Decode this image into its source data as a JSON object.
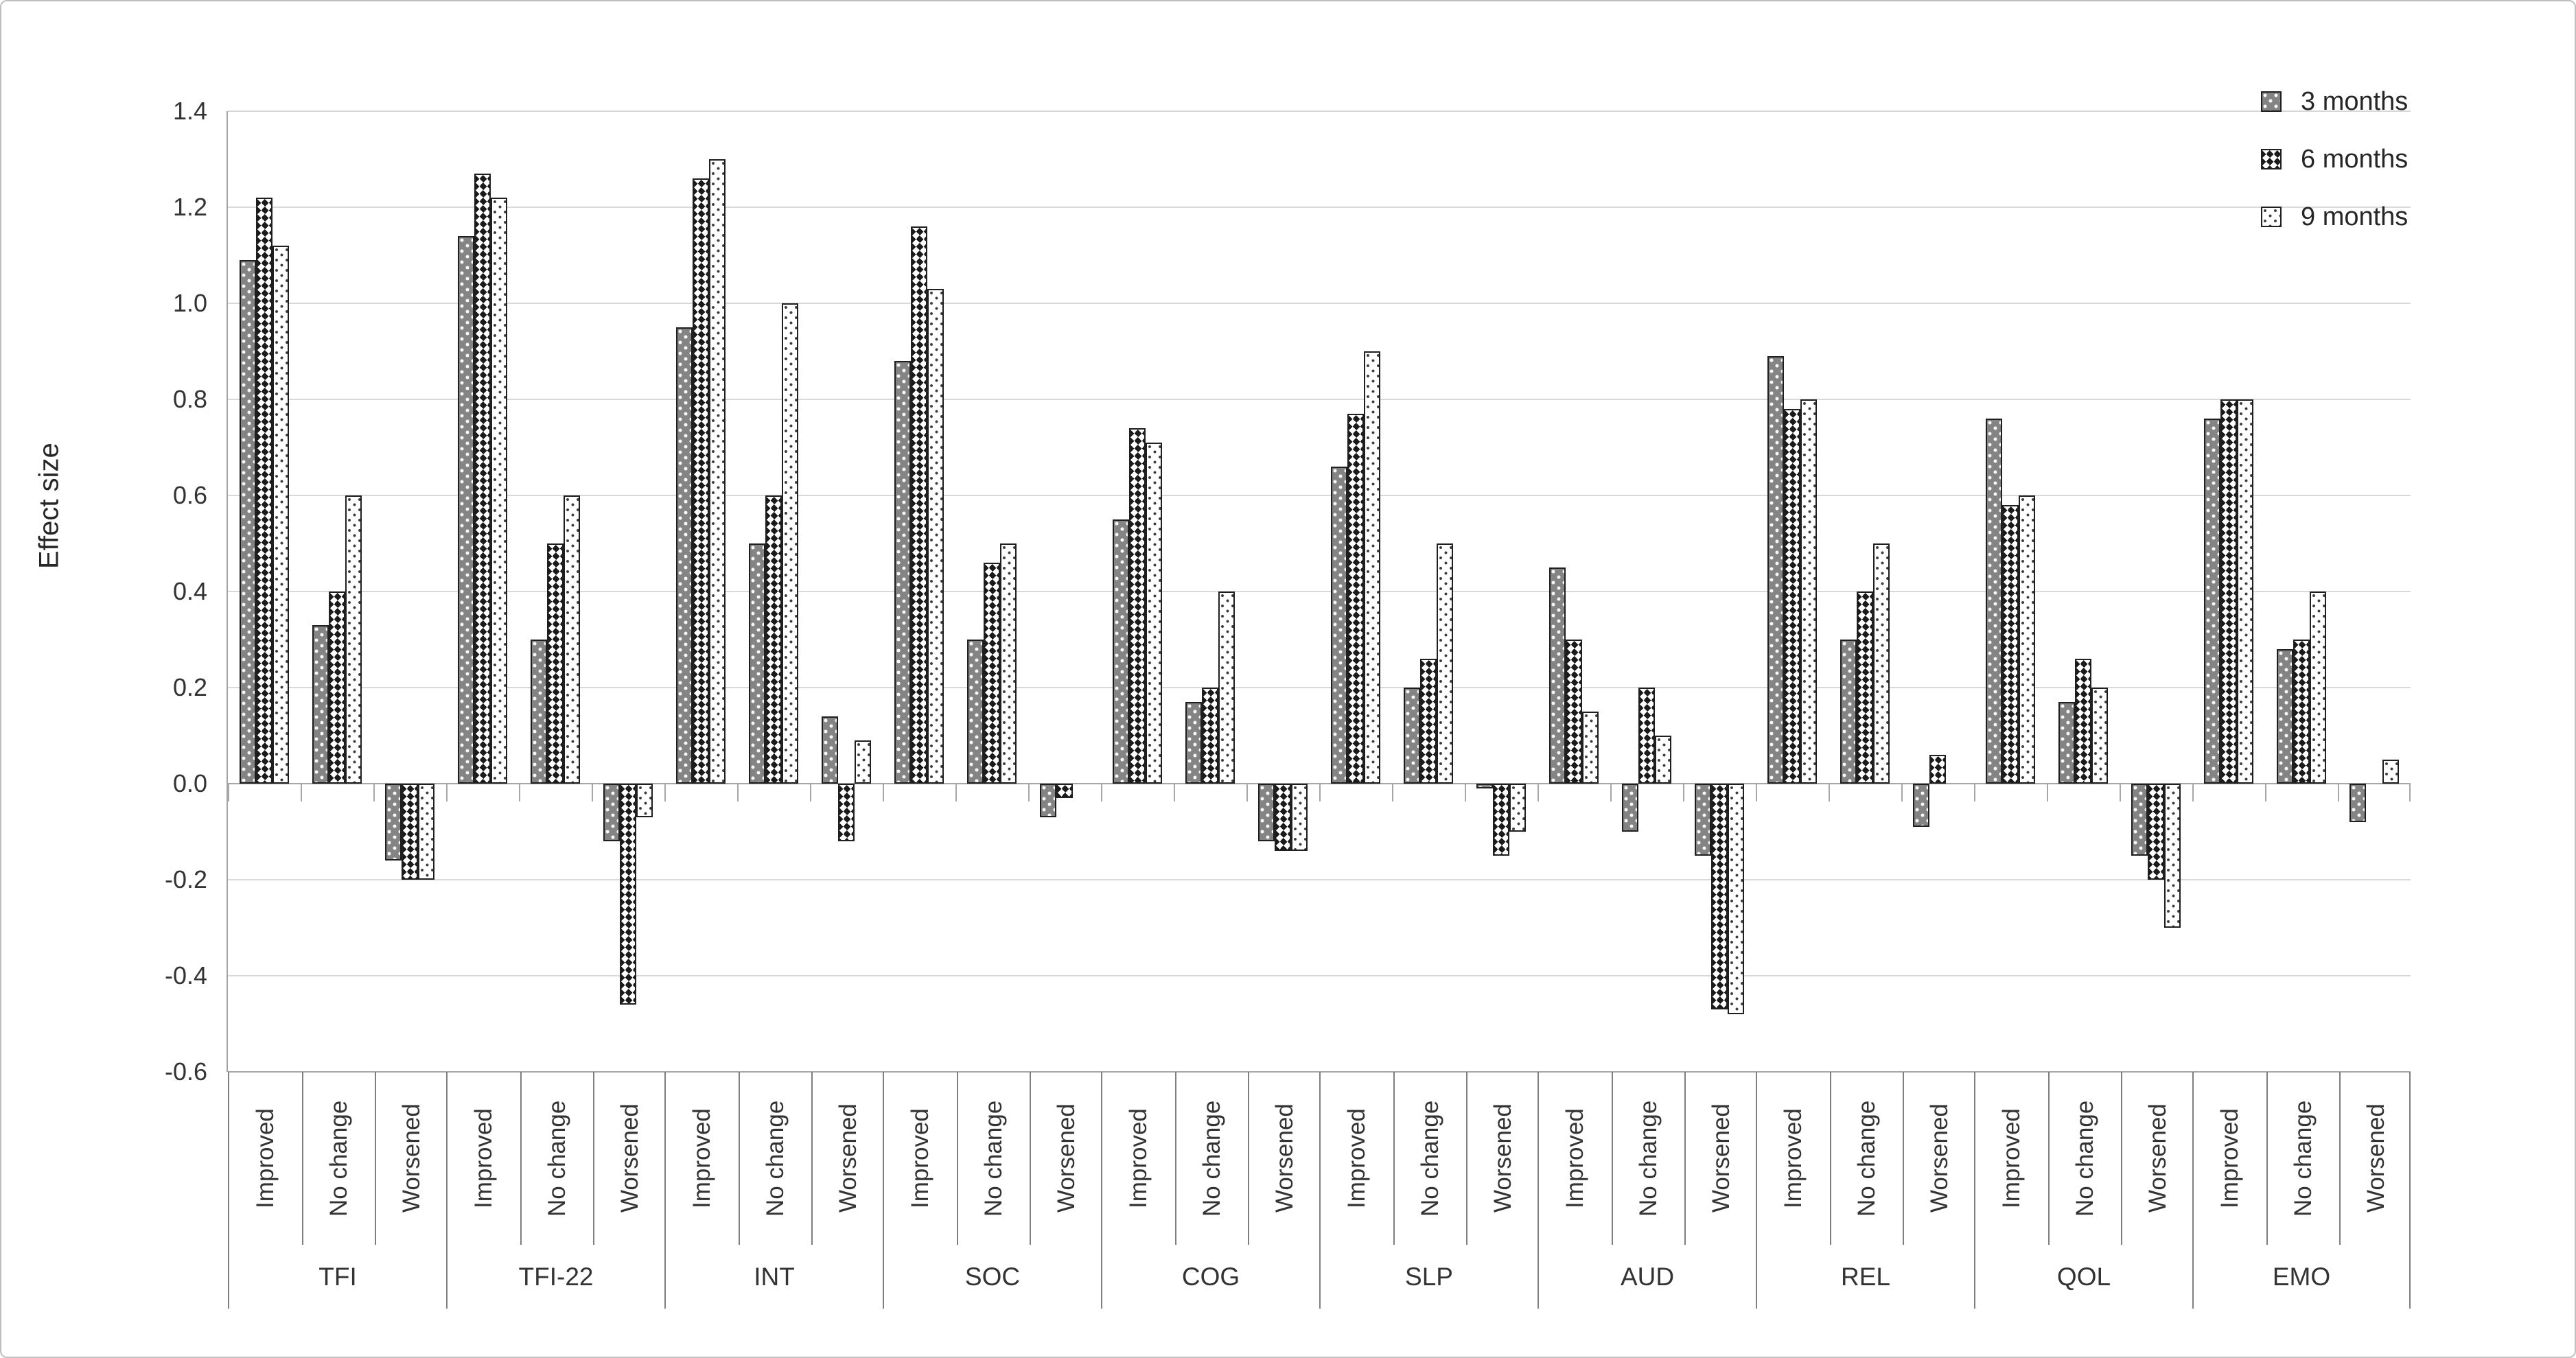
{
  "chart_data": {
    "type": "bar",
    "title": "",
    "ylabel": "Effect size",
    "ylim": [
      -0.6,
      1.4
    ],
    "y_tick_step": 0.2,
    "y_ticks": [
      "1.4",
      "1.2",
      "1.0",
      "0.8",
      "0.6",
      "0.4",
      "0.2",
      "0.0",
      "-0.2",
      "-0.4",
      "-0.6"
    ],
    "grid": "horizontal-light-gray",
    "legend_position": "top-right",
    "series_names": [
      "3 months",
      "6 months",
      "9 months"
    ],
    "series_patterns": [
      "dark-gray-with-white-dots",
      "black-white-checkerboard",
      "white-with-black-dots"
    ],
    "subcategories": [
      "Improved",
      "No change",
      "Worsened"
    ],
    "groups": [
      {
        "label": "TFI",
        "values": [
          [
            1.09,
            1.22,
            1.12
          ],
          [
            0.33,
            0.4,
            0.6
          ],
          [
            -0.16,
            -0.2,
            -0.2
          ]
        ]
      },
      {
        "label": "TFI-22",
        "values": [
          [
            1.14,
            1.27,
            1.22
          ],
          [
            0.3,
            0.5,
            0.6
          ],
          [
            -0.12,
            -0.46,
            -0.07
          ]
        ]
      },
      {
        "label": "INT",
        "values": [
          [
            0.95,
            1.26,
            1.3
          ],
          [
            0.5,
            0.6,
            1.0
          ],
          [
            0.14,
            -0.12,
            0.09
          ]
        ]
      },
      {
        "label": "SOC",
        "values": [
          [
            0.88,
            1.16,
            1.03
          ],
          [
            0.3,
            0.46,
            0.5
          ],
          [
            -0.07,
            -0.03,
            0
          ]
        ]
      },
      {
        "label": "COG",
        "values": [
          [
            0.55,
            0.74,
            0.71
          ],
          [
            0.17,
            0.2,
            0.4
          ],
          [
            -0.12,
            -0.14,
            -0.14
          ]
        ]
      },
      {
        "label": "SLP",
        "values": [
          [
            0.66,
            0.77,
            0.9
          ],
          [
            0.2,
            0.26,
            0.5
          ],
          [
            -0.01,
            -0.15,
            -0.1
          ]
        ]
      },
      {
        "label": "AUD",
        "values": [
          [
            0.45,
            0.3,
            0.15
          ],
          [
            -0.1,
            0.2,
            0.1
          ],
          [
            -0.15,
            -0.47,
            -0.48
          ]
        ]
      },
      {
        "label": "REL",
        "values": [
          [
            0.89,
            0.78,
            0.8
          ],
          [
            0.3,
            0.4,
            0.5
          ],
          [
            -0.09,
            0.06,
            0
          ]
        ]
      },
      {
        "label": "QOL",
        "values": [
          [
            0.76,
            0.58,
            0.6
          ],
          [
            0.17,
            0.26,
            0.2
          ],
          [
            -0.15,
            -0.2,
            -0.3
          ]
        ]
      },
      {
        "label": "EMO",
        "values": [
          [
            0.76,
            0.8,
            0.8
          ],
          [
            0.28,
            0.3,
            0.4
          ],
          [
            -0.08,
            0,
            0.05
          ]
        ]
      }
    ]
  },
  "colors": {
    "figure_border": "#bfbfbf",
    "gridline": "#d9d9d9",
    "axis_line": "#a6a6a6",
    "label_separator": "#7f7f7f",
    "bar_border": "#1f1f1f",
    "series_gray_fill": "#848484",
    "text": "#333333"
  }
}
